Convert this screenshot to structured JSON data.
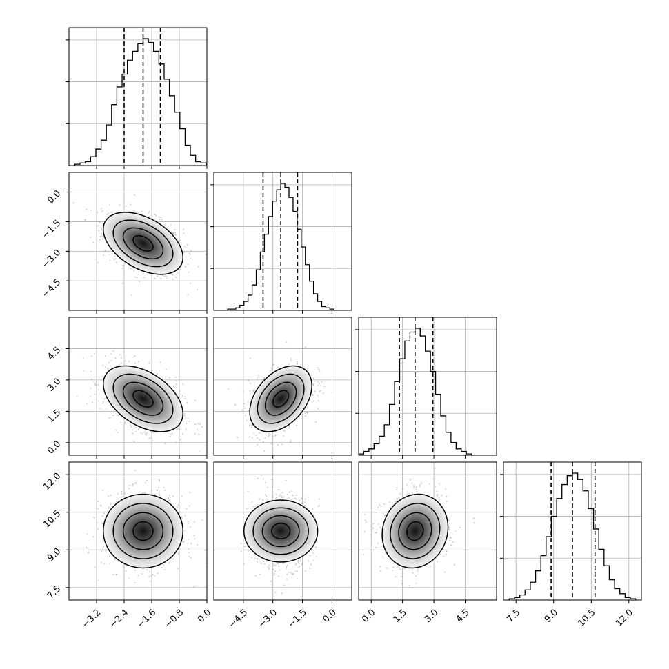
{
  "chart_data": {
    "type": "corner",
    "params": [
      {
        "name": "",
        "mean": -1.85,
        "sd": 0.55,
        "axis_range": [
          -4.0,
          0.0
        ],
        "ticks": [
          -3.2,
          -2.4,
          -1.6,
          -0.8,
          0.0
        ],
        "tick_labels": [
          "−3.2",
          "−2.4",
          "−1.6",
          "−0.8",
          "0.0"
        ],
        "quantiles": [
          -2.4,
          -1.85,
          -1.35
        ],
        "hist": [
          0.01,
          0.02,
          0.03,
          0.07,
          0.13,
          0.2,
          0.32,
          0.48,
          0.62,
          0.72,
          0.83,
          0.9,
          0.96,
          1.0,
          0.97,
          0.9,
          0.8,
          0.68,
          0.55,
          0.42,
          0.29,
          0.16,
          0.08,
          0.03,
          0.02,
          0.01
        ]
      },
      {
        "name": "",
        "mean": -2.6,
        "sd": 0.75,
        "axis_range": [
          -6.0,
          1.0
        ],
        "ticks": [
          -4.5,
          -3.0,
          -1.5,
          0.0
        ],
        "tick_labels": [
          "−4.5",
          "−3.0",
          "−1.5",
          "0.0"
        ],
        "quantiles": [
          -3.5,
          -2.6,
          -1.75
        ],
        "hist": [
          0.01,
          0.01,
          0.02,
          0.04,
          0.07,
          0.12,
          0.2,
          0.32,
          0.46,
          0.6,
          0.74,
          0.86,
          0.95,
          1.0,
          0.97,
          0.89,
          0.78,
          0.64,
          0.5,
          0.36,
          0.23,
          0.13,
          0.07,
          0.03,
          0.02,
          0.01
        ]
      },
      {
        "name": "",
        "mean": 2.1,
        "sd": 0.75,
        "axis_range": [
          -0.6,
          6.0
        ],
        "ticks": [
          0.0,
          1.5,
          3.0,
          4.5
        ],
        "tick_labels": [
          "0.0",
          "1.5",
          "3.0",
          "4.5"
        ],
        "quantiles": [
          1.35,
          2.1,
          2.95
        ],
        "hist": [
          0.01,
          0.03,
          0.05,
          0.09,
          0.15,
          0.24,
          0.4,
          0.58,
          0.76,
          0.9,
          0.97,
          1.0,
          0.94,
          0.82,
          0.66,
          0.48,
          0.31,
          0.18,
          0.1,
          0.05,
          0.03,
          0.01
        ]
      },
      {
        "name": "",
        "mean": 9.75,
        "sd": 0.7,
        "axis_range": [
          7.0,
          12.5
        ],
        "ticks": [
          7.5,
          9.0,
          10.5,
          12.0
        ],
        "tick_labels": [
          "7.5",
          "9.0",
          "10.5",
          "12.0"
        ],
        "quantiles": [
          8.9,
          9.75,
          10.65
        ],
        "hist": [
          0.01,
          0.02,
          0.04,
          0.08,
          0.14,
          0.23,
          0.35,
          0.5,
          0.66,
          0.8,
          0.91,
          0.98,
          1.0,
          0.95,
          0.86,
          0.72,
          0.56,
          0.4,
          0.27,
          0.16,
          0.09,
          0.05,
          0.02,
          0.01
        ]
      }
    ],
    "correlations": [
      [
        1.0,
        -0.45,
        -0.45,
        0.0
      ],
      [
        -0.45,
        1.0,
        0.4,
        0.0
      ],
      [
        -0.45,
        0.4,
        1.0,
        0.1
      ],
      [
        0.0,
        0.0,
        0.1,
        1.0
      ]
    ],
    "contour_levels_sigma": [
      0.5,
      1.0,
      1.5,
      2.0
    ],
    "grid": true,
    "quantile_lines": "dashed"
  }
}
